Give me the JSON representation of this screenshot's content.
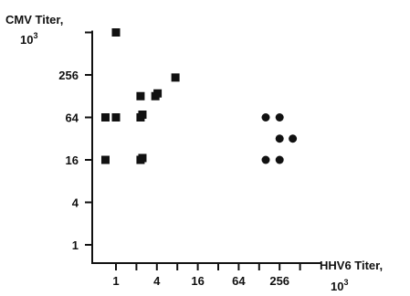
{
  "chart_data": {
    "type": "scatter",
    "scale": "log2",
    "ylabel": "CMV Titer,",
    "ylabel_unit_base": "10",
    "ylabel_unit_exp": "3",
    "xlabel": "HHV6 Titer,",
    "xlabel_unit_base": "10",
    "xlabel_unit_exp": "3",
    "xlim": [
      0.5,
      1024
    ],
    "ylim": [
      0.5,
      1024
    ],
    "xticks": [
      1,
      2,
      4,
      8,
      16,
      32,
      64,
      128,
      256,
      512
    ],
    "xtick_labels": [
      {
        "value": 1,
        "label": "1"
      },
      {
        "value": 4,
        "label": "4"
      },
      {
        "value": 16,
        "label": "16"
      },
      {
        "value": 64,
        "label": "64"
      },
      {
        "value": 256,
        "label": "256"
      }
    ],
    "yticks": [
      1,
      4,
      16,
      64,
      256,
      1024
    ],
    "ytick_labels": [
      {
        "value": 1,
        "label": "1"
      },
      {
        "value": 4,
        "label": "4"
      },
      {
        "value": 16,
        "label": "16"
      },
      {
        "value": 64,
        "label": "64"
      },
      {
        "value": 256,
        "label": "256"
      }
    ],
    "grid": false,
    "series": [
      {
        "marker": "square",
        "color": "#111111",
        "points": [
          {
            "x": 0.7,
            "y": 16
          },
          {
            "x": 0.7,
            "y": 64
          },
          {
            "x": 1,
            "y": 64
          },
          {
            "x": 1,
            "y": 1024
          },
          {
            "x": 2.3,
            "y": 16
          },
          {
            "x": 2.45,
            "y": 17
          },
          {
            "x": 2.3,
            "y": 64
          },
          {
            "x": 2.45,
            "y": 70
          },
          {
            "x": 2.3,
            "y": 128
          },
          {
            "x": 3.8,
            "y": 128
          },
          {
            "x": 4.1,
            "y": 140
          },
          {
            "x": 7.5,
            "y": 235
          }
        ]
      },
      {
        "marker": "circle",
        "color": "#111111",
        "points": [
          {
            "x": 160,
            "y": 64
          },
          {
            "x": 160,
            "y": 16
          },
          {
            "x": 256,
            "y": 64
          },
          {
            "x": 256,
            "y": 32
          },
          {
            "x": 256,
            "y": 16
          },
          {
            "x": 400,
            "y": 32
          }
        ]
      }
    ]
  }
}
